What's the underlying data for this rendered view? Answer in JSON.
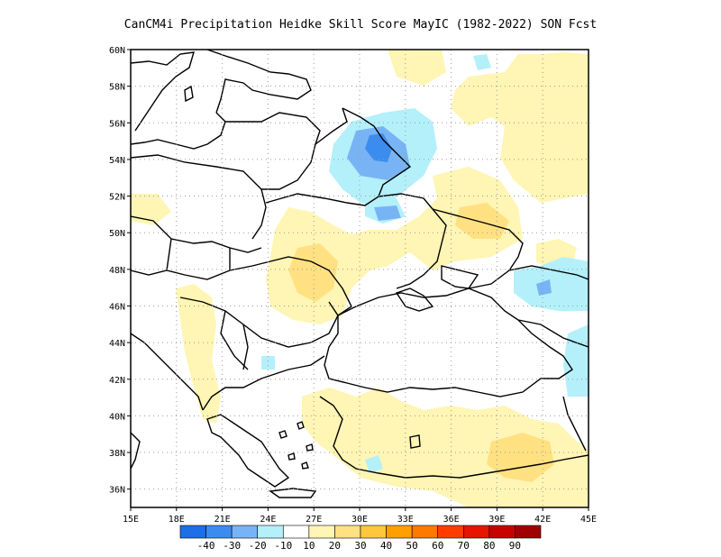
{
  "title": "CanCM4i  Precipitation Heidke Skill Score MayIC (1982-2022) SON Fcst",
  "map": {
    "lon_ticks": [
      "15E",
      "18E",
      "21E",
      "24E",
      "27E",
      "30E",
      "33E",
      "36E",
      "39E",
      "42E",
      "45E"
    ],
    "lat_ticks": [
      "60N",
      "58N",
      "56N",
      "54N",
      "52N",
      "50N",
      "48N",
      "46N",
      "44N",
      "42N",
      "40N",
      "38N",
      "36N"
    ],
    "lon_range": [
      15,
      45
    ],
    "lat_range": [
      35,
      60
    ]
  },
  "colorbar": {
    "labels": [
      "-40",
      "-30",
      "-20",
      "-10",
      "10",
      "20",
      "30",
      "40",
      "50",
      "60",
      "70",
      "80",
      "90"
    ],
    "colors": [
      "#1e6ee6",
      "#3c8cf0",
      "#78b4f5",
      "#b4f0fa",
      "#ffffff",
      "#fff5b4",
      "#ffe182",
      "#ffc83c",
      "#ffa000",
      "#ff7800",
      "#ff3c00",
      "#e61400",
      "#c80000",
      "#a00000"
    ]
  },
  "chart_data": {
    "type": "heatmap",
    "title": "CanCM4i  Precipitation Heidke Skill Score MayIC (1982-2022) SON Fcst",
    "x_ticks": [
      "15E",
      "18E",
      "21E",
      "24E",
      "27E",
      "30E",
      "33E",
      "36E",
      "39E",
      "42E",
      "45E"
    ],
    "y_ticks": [
      "60N",
      "58N",
      "56N",
      "54N",
      "52N",
      "50N",
      "48N",
      "46N",
      "44N",
      "42N",
      "40N",
      "38N",
      "36N"
    ],
    "x_range": [
      15,
      45
    ],
    "y_range": [
      35,
      60
    ],
    "color_levels": [
      -40,
      -30,
      -20,
      -10,
      10,
      20,
      30,
      40,
      50,
      60,
      70,
      80,
      90
    ],
    "regions": [
      {
        "lon": [
          32,
          34
        ],
        "lat": [
          53,
          55.5
        ],
        "value": -25
      },
      {
        "lon": [
          29,
          36
        ],
        "lat": [
          52,
          57
        ],
        "value": -12
      },
      {
        "lon": [
          38,
          41
        ],
        "lat": [
          56,
          59
        ],
        "value": 12
      },
      {
        "lon": [
          41,
          45
        ],
        "lat": [
          52,
          57
        ],
        "value": 12
      },
      {
        "lon": [
          34,
          39
        ],
        "lat": [
          50,
          53
        ],
        "value": 15
      },
      {
        "lon": [
          24,
          36
        ],
        "lat": [
          46,
          51
        ],
        "value": 12
      },
      {
        "lon": [
          25,
          30
        ],
        "lat": [
          46,
          49
        ],
        "value": 15
      },
      {
        "lon": [
          15,
          17
        ],
        "lat": [
          50,
          53
        ],
        "value": 12
      },
      {
        "lon": [
          40,
          45
        ],
        "lat": [
          45,
          48
        ],
        "value": -12
      },
      {
        "lon": [
          44,
          45
        ],
        "lat": [
          41,
          44
        ],
        "value": -12
      },
      {
        "lon": [
          27,
          45
        ],
        "lat": [
          36,
          41
        ],
        "value": 12
      },
      {
        "lon": [
          36,
          42
        ],
        "lat": [
          36,
          39
        ],
        "value": 15
      },
      {
        "lon": [
          17,
          23
        ],
        "lat": [
          38,
          46
        ],
        "value": 12
      },
      {
        "lon": [
          32,
          34
        ],
        "lat": [
          58,
          60
        ],
        "value": 12
      }
    ]
  }
}
